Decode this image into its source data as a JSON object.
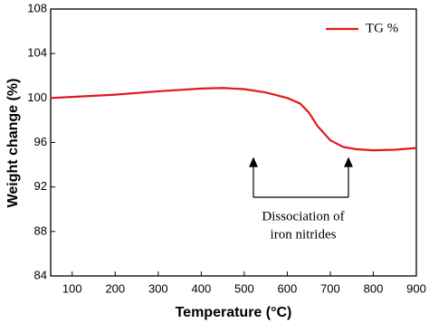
{
  "chart_data": {
    "type": "line",
    "x_label": "Temperature (°C)",
    "y_label": "Weight change (%)",
    "x": [
      50,
      100,
      200,
      300,
      400,
      450,
      500,
      550,
      600,
      630,
      650,
      670,
      700,
      730,
      760,
      800,
      850,
      900
    ],
    "series": [
      {
        "name": "TG %",
        "color": "#e0191e",
        "values": [
          100.0,
          100.1,
          100.3,
          100.6,
          100.85,
          100.9,
          100.8,
          100.5,
          100.0,
          99.5,
          98.7,
          97.5,
          96.2,
          95.6,
          95.4,
          95.3,
          95.35,
          95.5
        ]
      }
    ],
    "xlim": [
      50,
      900
    ],
    "xticks": [
      100,
      200,
      300,
      400,
      500,
      600,
      700,
      800,
      900
    ],
    "ylim": [
      84,
      108
    ],
    "yticks": [
      84,
      88,
      92,
      96,
      100,
      104,
      108
    ],
    "legend": "upper right",
    "annotation": [
      "Dissociation of",
      "iron nitrides"
    ]
  }
}
